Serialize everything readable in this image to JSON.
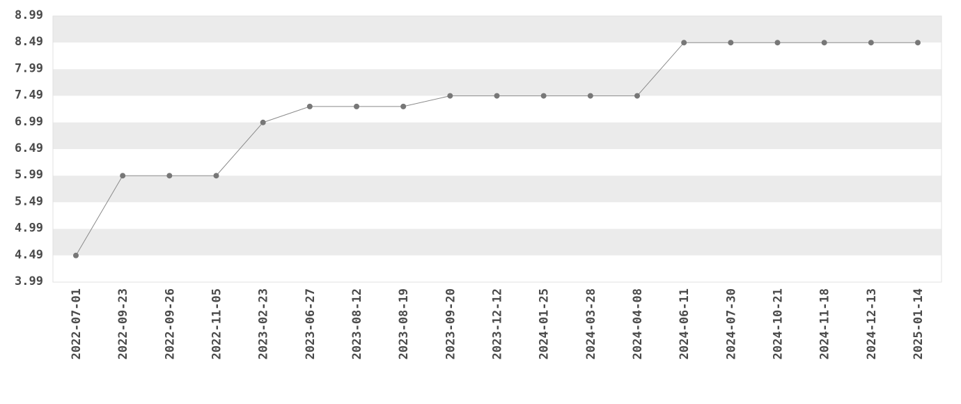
{
  "chart_data": {
    "type": "line",
    "title": "",
    "xlabel": "",
    "ylabel": "",
    "ylim": [
      3.99,
      8.99
    ],
    "yticks": [
      "3.99",
      "4.49",
      "4.99",
      "5.49",
      "5.99",
      "6.49",
      "6.99",
      "7.49",
      "7.99",
      "8.49",
      "8.99"
    ],
    "grid": "alternating horizontal bands",
    "categories": [
      "2022-07-01",
      "2022-09-23",
      "2022-09-26",
      "2022-11-05",
      "2023-02-23",
      "2023-06-27",
      "2023-08-12",
      "2023-08-19",
      "2023-09-20",
      "2023-12-12",
      "2024-01-25",
      "2024-03-28",
      "2024-04-08",
      "2024-06-11",
      "2024-07-30",
      "2024-10-21",
      "2024-11-18",
      "2024-12-13",
      "2025-01-14"
    ],
    "series": [
      {
        "values": [
          4.49,
          5.99,
          5.99,
          5.99,
          6.99,
          7.29,
          7.29,
          7.29,
          7.49,
          7.49,
          7.49,
          7.49,
          7.49,
          8.49,
          8.49,
          8.49,
          8.49,
          8.49,
          8.49
        ]
      }
    ],
    "colors": {
      "band": "#ebebeb",
      "line": "#8a8a8a",
      "marker": "#777777",
      "text": "#4a4a4a"
    }
  }
}
